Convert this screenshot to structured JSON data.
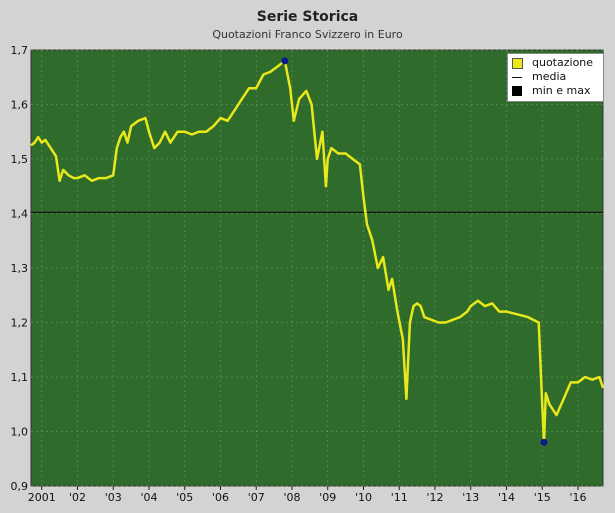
{
  "header": {
    "title": "Serie Storica",
    "subtitle": "Quotazioni Franco Svizzero in Euro"
  },
  "legend": {
    "items": [
      {
        "label": "quotazione"
      },
      {
        "label": "media"
      },
      {
        "label": "min e max"
      }
    ]
  },
  "colors": {
    "plot_bg": "#2f6b2a",
    "series": "#e8e81a",
    "mean_line": "#111111",
    "minmax": "#0a1a8a",
    "grid": "#5f8f55"
  },
  "chart_data": {
    "type": "line",
    "title": "Serie Storica",
    "subtitle": "Quotazioni Franco Svizzero in Euro",
    "xlabel": "",
    "ylabel": "",
    "xlim": [
      2000.7,
      2016.7
    ],
    "ylim": [
      0.9,
      1.7
    ],
    "y_ticks": [
      "0,9",
      "1,0",
      "1,1",
      "1,2",
      "1,3",
      "1,4",
      "1,5",
      "1,6",
      "1,7"
    ],
    "x_ticks": [
      {
        "label": "2001",
        "x": 2001.0
      },
      {
        "label": "'02",
        "x": 2002.0
      },
      {
        "label": "'03",
        "x": 2003.0
      },
      {
        "label": "'04",
        "x": 2004.0
      },
      {
        "label": "'05",
        "x": 2005.0
      },
      {
        "label": "'06",
        "x": 2006.0
      },
      {
        "label": "'07",
        "x": 2007.0
      },
      {
        "label": "'08",
        "x": 2008.0
      },
      {
        "label": "'09",
        "x": 2009.0
      },
      {
        "label": "'10",
        "x": 2010.0
      },
      {
        "label": "'11",
        "x": 2011.0
      },
      {
        "label": "'12",
        "x": 2012.0
      },
      {
        "label": "'13",
        "x": 2013.0
      },
      {
        "label": "'14",
        "x": 2014.0
      },
      {
        "label": "'15",
        "x": 2015.0
      },
      {
        "label": "'16",
        "x": 2016.0
      }
    ],
    "grid": true,
    "legend_position": "top-right",
    "mean": 1.402,
    "min_point": {
      "x": 2015.05,
      "y": 0.98
    },
    "max_point": {
      "x": 2007.8,
      "y": 1.68
    },
    "series": [
      {
        "name": "quotazione",
        "x": [
          2000.7,
          2000.8,
          2000.9,
          2001.0,
          2001.1,
          2001.25,
          2001.4,
          2001.5,
          2001.6,
          2001.75,
          2001.9,
          2002.0,
          2002.2,
          2002.4,
          2002.6,
          2002.8,
          2003.0,
          2003.1,
          2003.2,
          2003.3,
          2003.4,
          2003.5,
          2003.7,
          2003.9,
          2004.0,
          2004.15,
          2004.3,
          2004.45,
          2004.6,
          2004.8,
          2005.0,
          2005.2,
          2005.4,
          2005.6,
          2005.8,
          2006.0,
          2006.2,
          2006.4,
          2006.6,
          2006.8,
          2007.0,
          2007.2,
          2007.4,
          2007.6,
          2007.8,
          2007.95,
          2008.05,
          2008.2,
          2008.4,
          2008.55,
          2008.7,
          2008.85,
          2008.95,
          2009.0,
          2009.1,
          2009.3,
          2009.5,
          2009.7,
          2009.9,
          2010.0,
          2010.1,
          2010.25,
          2010.4,
          2010.55,
          2010.7,
          2010.8,
          2010.95,
          2011.1,
          2011.2,
          2011.3,
          2011.4,
          2011.5,
          2011.6,
          2011.7,
          2011.9,
          2012.1,
          2012.3,
          2012.5,
          2012.7,
          2012.9,
          2013.0,
          2013.2,
          2013.4,
          2013.6,
          2013.8,
          2014.0,
          2014.3,
          2014.6,
          2014.9,
          2015.0,
          2015.05,
          2015.1,
          2015.2,
          2015.4,
          2015.6,
          2015.8,
          2016.0,
          2016.2,
          2016.4,
          2016.6,
          2016.7
        ],
        "values": [
          1.525,
          1.53,
          1.54,
          1.53,
          1.535,
          1.52,
          1.505,
          1.46,
          1.48,
          1.47,
          1.465,
          1.465,
          1.47,
          1.46,
          1.465,
          1.465,
          1.47,
          1.52,
          1.54,
          1.55,
          1.53,
          1.56,
          1.57,
          1.575,
          1.55,
          1.52,
          1.53,
          1.55,
          1.53,
          1.55,
          1.55,
          1.545,
          1.55,
          1.55,
          1.56,
          1.575,
          1.57,
          1.59,
          1.61,
          1.63,
          1.63,
          1.655,
          1.66,
          1.67,
          1.68,
          1.63,
          1.57,
          1.61,
          1.625,
          1.6,
          1.5,
          1.55,
          1.45,
          1.5,
          1.52,
          1.51,
          1.51,
          1.5,
          1.49,
          1.43,
          1.38,
          1.35,
          1.3,
          1.32,
          1.26,
          1.28,
          1.22,
          1.17,
          1.06,
          1.2,
          1.23,
          1.235,
          1.23,
          1.21,
          1.205,
          1.2,
          1.2,
          1.205,
          1.21,
          1.22,
          1.23,
          1.24,
          1.23,
          1.235,
          1.22,
          1.22,
          1.215,
          1.21,
          1.2,
          1.05,
          0.98,
          1.07,
          1.05,
          1.03,
          1.06,
          1.09,
          1.09,
          1.1,
          1.095,
          1.1,
          1.08
        ]
      }
    ]
  }
}
